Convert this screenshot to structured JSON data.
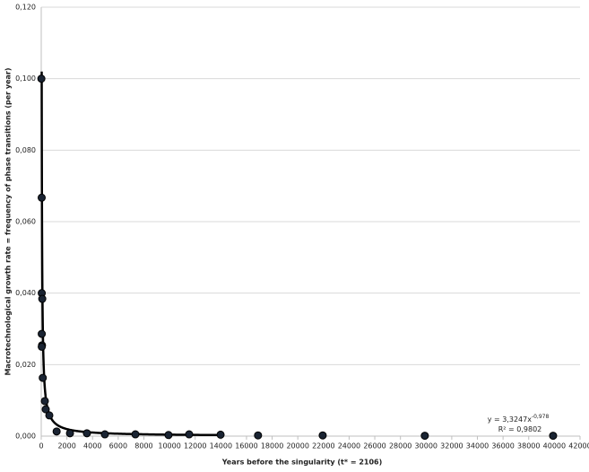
{
  "chart_data": {
    "type": "scatter",
    "x_label": "Years before the singularity  (t* = 2106)",
    "y_label": "Macrotechnological growth rate = frequency of phase transitions (per year)",
    "x": [
      10,
      35,
      40,
      80,
      40,
      60,
      40,
      120,
      280,
      350,
      630,
      1200,
      2240,
      3560,
      4960,
      7340,
      9920,
      11530,
      13980,
      16900,
      21940,
      29900,
      39900
    ],
    "values": [
      0.1,
      0.0667,
      0.04,
      0.0384,
      0.0286,
      0.0254,
      0.025,
      0.0163,
      0.0098,
      0.0075,
      0.0058,
      0.0013,
      0.0008,
      0.0008,
      0.0005,
      0.0005,
      0.0003,
      0.0005,
      0.0004,
      0.0002,
      0.0002,
      0.0001,
      0.0001
    ],
    "color": "#1a2433",
    "xlim": [
      0,
      42000
    ],
    "xticks": [
      0,
      2000,
      4000,
      6000,
      8000,
      10000,
      12000,
      14000,
      16000,
      18000,
      20000,
      22000,
      24000,
      26000,
      28000,
      30000,
      32000,
      34000,
      36000,
      38000,
      40000,
      42000
    ],
    "ylim": [
      0,
      0.12
    ],
    "yticks": [
      {
        "value": 0,
        "label": "0,000"
      },
      {
        "value": 0.02,
        "label": "0,020"
      },
      {
        "value": 0.04,
        "label": "0,040"
      },
      {
        "value": 0.06,
        "label": "0,060"
      },
      {
        "value": 0.08,
        "label": "0,080"
      },
      {
        "value": 0.1,
        "label": "0,100"
      },
      {
        "value": 0.12,
        "label": "0,120"
      }
    ],
    "grid": true,
    "trendline": {
      "type": "power",
      "equation_prefix": "y = ",
      "coefficient": {
        "value": 3.3247,
        "label": "3,3247"
      },
      "variable": "x",
      "exponent": {
        "value": -0.978,
        "label": "-0,978"
      },
      "r_squared_prefix": "R² = ",
      "r_squared": {
        "value": 0.9802,
        "label": "0,9802"
      }
    }
  }
}
